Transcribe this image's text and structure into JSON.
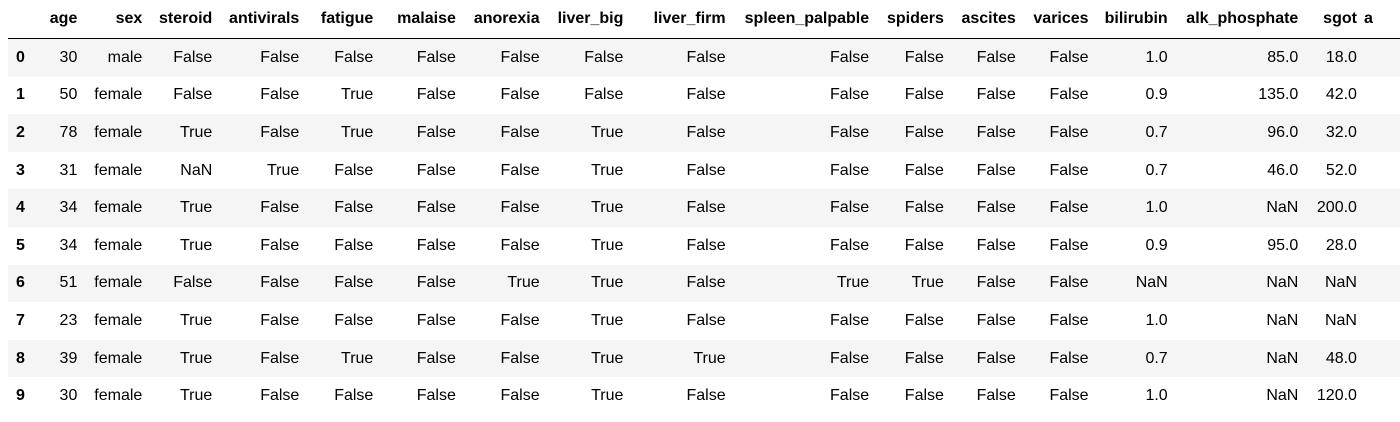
{
  "table": {
    "columns": [
      "age",
      "sex",
      "steroid",
      "antivirals",
      "fatigue",
      "malaise",
      "anorexia",
      "liver_big",
      "liver_firm",
      "spleen_palpable",
      "spiders",
      "ascites",
      "varices",
      "bilirubin",
      "alk_phosphate",
      "sgot",
      "a"
    ],
    "rows": [
      {
        "index": "0",
        "cells": [
          "30",
          "male",
          "False",
          "False",
          "False",
          "False",
          "False",
          "False",
          "False",
          "False",
          "False",
          "False",
          "False",
          "1.0",
          "85.0",
          "18.0",
          ""
        ]
      },
      {
        "index": "1",
        "cells": [
          "50",
          "female",
          "False",
          "False",
          "True",
          "False",
          "False",
          "False",
          "False",
          "False",
          "False",
          "False",
          "False",
          "0.9",
          "135.0",
          "42.0",
          ""
        ]
      },
      {
        "index": "2",
        "cells": [
          "78",
          "female",
          "True",
          "False",
          "True",
          "False",
          "False",
          "True",
          "False",
          "False",
          "False",
          "False",
          "False",
          "0.7",
          "96.0",
          "32.0",
          ""
        ]
      },
      {
        "index": "3",
        "cells": [
          "31",
          "female",
          "NaN",
          "True",
          "False",
          "False",
          "False",
          "True",
          "False",
          "False",
          "False",
          "False",
          "False",
          "0.7",
          "46.0",
          "52.0",
          ""
        ]
      },
      {
        "index": "4",
        "cells": [
          "34",
          "female",
          "True",
          "False",
          "False",
          "False",
          "False",
          "True",
          "False",
          "False",
          "False",
          "False",
          "False",
          "1.0",
          "NaN",
          "200.0",
          ""
        ]
      },
      {
        "index": "5",
        "cells": [
          "34",
          "female",
          "True",
          "False",
          "False",
          "False",
          "False",
          "True",
          "False",
          "False",
          "False",
          "False",
          "False",
          "0.9",
          "95.0",
          "28.0",
          ""
        ]
      },
      {
        "index": "6",
        "cells": [
          "51",
          "female",
          "False",
          "False",
          "False",
          "False",
          "True",
          "True",
          "False",
          "True",
          "True",
          "False",
          "False",
          "NaN",
          "NaN",
          "NaN",
          ""
        ]
      },
      {
        "index": "7",
        "cells": [
          "23",
          "female",
          "True",
          "False",
          "False",
          "False",
          "False",
          "True",
          "False",
          "False",
          "False",
          "False",
          "False",
          "1.0",
          "NaN",
          "NaN",
          ""
        ]
      },
      {
        "index": "8",
        "cells": [
          "39",
          "female",
          "True",
          "False",
          "True",
          "False",
          "False",
          "True",
          "True",
          "False",
          "False",
          "False",
          "False",
          "0.7",
          "NaN",
          "48.0",
          ""
        ]
      },
      {
        "index": "9",
        "cells": [
          "30",
          "female",
          "True",
          "False",
          "False",
          "False",
          "False",
          "True",
          "False",
          "False",
          "False",
          "False",
          "False",
          "1.0",
          "NaN",
          "120.0",
          ""
        ]
      }
    ]
  }
}
